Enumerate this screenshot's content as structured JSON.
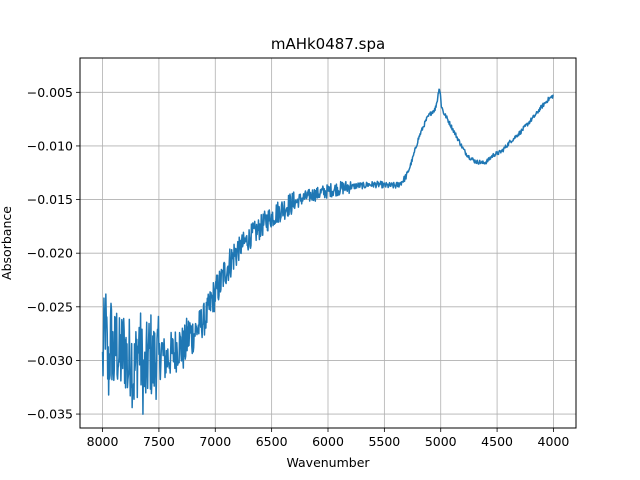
{
  "chart_data": {
    "type": "line",
    "title": "mAHk0487.spa",
    "xlabel": "Wavenumber",
    "ylabel": "Absorbance",
    "xlim": [
      8200,
      3800
    ],
    "x_reversed": true,
    "ylim": [
      -0.0363,
      -0.0018
    ],
    "grid": true,
    "x_ticks": [
      8000,
      7500,
      7000,
      6500,
      6000,
      5500,
      5000,
      4500,
      4000
    ],
    "x_tick_labels": [
      "8000",
      "7500",
      "7000",
      "6500",
      "6000",
      "5500",
      "5000",
      "4500",
      "4000"
    ],
    "y_ticks": [
      -0.035,
      -0.03,
      -0.025,
      -0.02,
      -0.015,
      -0.01,
      -0.005
    ],
    "y_tick_labels": [
      "−0.035",
      "−0.030",
      "−0.025",
      "−0.020",
      "−0.015",
      "−0.010",
      "−0.005"
    ],
    "series": [
      {
        "color": "#1f77b4",
        "points": [
          [
            8000,
            -0.0305
          ],
          [
            7975,
            -0.0262
          ],
          [
            7950,
            -0.0312
          ],
          [
            7925,
            -0.0278
          ],
          [
            7900,
            -0.03
          ],
          [
            7875,
            -0.0283
          ],
          [
            7850,
            -0.03
          ],
          [
            7825,
            -0.0292
          ],
          [
            7800,
            -0.0288
          ],
          [
            7775,
            -0.0308
          ],
          [
            7750,
            -0.029
          ],
          [
            7725,
            -0.0315
          ],
          [
            7700,
            -0.03
          ],
          [
            7675,
            -0.0283
          ],
          [
            7650,
            -0.0305
          ],
          [
            7625,
            -0.0318
          ],
          [
            7600,
            -0.03
          ],
          [
            7575,
            -0.0292
          ],
          [
            7550,
            -0.0305
          ],
          [
            7525,
            -0.0295
          ],
          [
            7500,
            -0.0302
          ],
          [
            7475,
            -0.029
          ],
          [
            7450,
            -0.03
          ],
          [
            7425,
            -0.0298
          ],
          [
            7400,
            -0.0295
          ],
          [
            7375,
            -0.0294
          ],
          [
            7350,
            -0.029
          ],
          [
            7325,
            -0.0285
          ],
          [
            7300,
            -0.0288
          ],
          [
            7275,
            -0.029
          ],
          [
            7250,
            -0.028
          ],
          [
            7225,
            -0.0275
          ],
          [
            7200,
            -0.0278
          ],
          [
            7175,
            -0.0272
          ],
          [
            7150,
            -0.027
          ],
          [
            7125,
            -0.0265
          ],
          [
            7100,
            -0.0262
          ],
          [
            7075,
            -0.0258
          ],
          [
            7050,
            -0.025
          ],
          [
            7025,
            -0.0242
          ],
          [
            7000,
            -0.0238
          ],
          [
            6975,
            -0.0232
          ],
          [
            6950,
            -0.0228
          ],
          [
            6925,
            -0.022
          ],
          [
            6900,
            -0.0214
          ],
          [
            6875,
            -0.021
          ],
          [
            6850,
            -0.0205
          ],
          [
            6825,
            -0.02
          ],
          [
            6800,
            -0.0198
          ],
          [
            6775,
            -0.0194
          ],
          [
            6750,
            -0.0191
          ],
          [
            6725,
            -0.0189
          ],
          [
            6700,
            -0.0186
          ],
          [
            6675,
            -0.0183
          ],
          [
            6650,
            -0.0181
          ],
          [
            6625,
            -0.0179
          ],
          [
            6600,
            -0.0176
          ],
          [
            6575,
            -0.0173
          ],
          [
            6550,
            -0.017
          ],
          [
            6525,
            -0.0168
          ],
          [
            6500,
            -0.0166
          ],
          [
            6475,
            -0.0164
          ],
          [
            6450,
            -0.0162
          ],
          [
            6425,
            -0.016
          ],
          [
            6400,
            -0.0159
          ],
          [
            6375,
            -0.0157
          ],
          [
            6350,
            -0.0155
          ],
          [
            6325,
            -0.0154
          ],
          [
            6300,
            -0.0153
          ],
          [
            6275,
            -0.0152
          ],
          [
            6250,
            -0.015
          ],
          [
            6225,
            -0.0149
          ],
          [
            6200,
            -0.0148
          ],
          [
            6175,
            -0.0147
          ],
          [
            6150,
            -0.0146
          ],
          [
            6125,
            -0.0145
          ],
          [
            6100,
            -0.0145
          ],
          [
            6075,
            -0.0144
          ],
          [
            6050,
            -0.0143
          ],
          [
            6025,
            -0.0143
          ],
          [
            6000,
            -0.0142
          ],
          [
            5975,
            -0.0141
          ],
          [
            5950,
            -0.0141
          ],
          [
            5925,
            -0.014
          ],
          [
            5900,
            -0.014
          ],
          [
            5875,
            -0.0139
          ],
          [
            5850,
            -0.0139
          ],
          [
            5825,
            -0.0138
          ],
          [
            5800,
            -0.0138
          ],
          [
            5775,
            -0.0138
          ],
          [
            5750,
            -0.0137
          ],
          [
            5725,
            -0.0137
          ],
          [
            5700,
            -0.0137
          ],
          [
            5675,
            -0.0137
          ],
          [
            5650,
            -0.0136
          ],
          [
            5625,
            -0.0136
          ],
          [
            5600,
            -0.0136
          ],
          [
            5575,
            -0.0136
          ],
          [
            5550,
            -0.0136
          ],
          [
            5525,
            -0.0136
          ],
          [
            5500,
            -0.0137
          ],
          [
            5475,
            -0.0137
          ],
          [
            5450,
            -0.0137
          ],
          [
            5425,
            -0.0137
          ],
          [
            5400,
            -0.0137
          ],
          [
            5375,
            -0.0136
          ],
          [
            5350,
            -0.0134
          ],
          [
            5325,
            -0.0131
          ],
          [
            5300,
            -0.0127
          ],
          [
            5275,
            -0.012
          ],
          [
            5250,
            -0.0112
          ],
          [
            5225,
            -0.0103
          ],
          [
            5200,
            -0.0094
          ],
          [
            5175,
            -0.0087
          ],
          [
            5150,
            -0.0081
          ],
          [
            5125,
            -0.0075
          ],
          [
            5100,
            -0.0071
          ],
          [
            5075,
            -0.0068
          ],
          [
            5050,
            -0.0066
          ],
          [
            5030,
            -0.0057
          ],
          [
            5015,
            -0.0046
          ],
          [
            5005,
            -0.005
          ],
          [
            4995,
            -0.0062
          ],
          [
            4975,
            -0.0069
          ],
          [
            4950,
            -0.0073
          ],
          [
            4925,
            -0.0078
          ],
          [
            4900,
            -0.0083
          ],
          [
            4875,
            -0.0088
          ],
          [
            4850,
            -0.0093
          ],
          [
            4825,
            -0.0098
          ],
          [
            4800,
            -0.0103
          ],
          [
            4775,
            -0.0107
          ],
          [
            4750,
            -0.011
          ],
          [
            4725,
            -0.0112
          ],
          [
            4700,
            -0.0114
          ],
          [
            4675,
            -0.0115
          ],
          [
            4650,
            -0.0115
          ],
          [
            4625,
            -0.0116
          ],
          [
            4600,
            -0.0115
          ],
          [
            4575,
            -0.0113
          ],
          [
            4550,
            -0.011
          ],
          [
            4525,
            -0.0108
          ],
          [
            4500,
            -0.0107
          ],
          [
            4475,
            -0.0106
          ],
          [
            4450,
            -0.0104
          ],
          [
            4425,
            -0.0101
          ],
          [
            4400,
            -0.0098
          ],
          [
            4375,
            -0.0095
          ],
          [
            4350,
            -0.0093
          ],
          [
            4325,
            -0.009
          ],
          [
            4300,
            -0.0088
          ],
          [
            4275,
            -0.0085
          ],
          [
            4250,
            -0.0082
          ],
          [
            4225,
            -0.0079
          ],
          [
            4200,
            -0.0076
          ],
          [
            4175,
            -0.0073
          ],
          [
            4150,
            -0.007
          ],
          [
            4125,
            -0.0066
          ],
          [
            4100,
            -0.0063
          ],
          [
            4075,
            -0.006
          ],
          [
            4050,
            -0.0057
          ],
          [
            4025,
            -0.0055
          ],
          [
            4000,
            -0.0053
          ]
        ],
        "noise": [
          {
            "from": 8000,
            "to": 7500,
            "amplitude": 0.0042
          },
          {
            "from": 7500,
            "to": 7200,
            "amplitude": 0.0022
          },
          {
            "from": 7200,
            "to": 6800,
            "amplitude": 0.0016
          },
          {
            "from": 6800,
            "to": 6300,
            "amplitude": 0.0011
          },
          {
            "from": 6300,
            "to": 5800,
            "amplitude": 0.00065
          },
          {
            "from": 5800,
            "to": 5300,
            "amplitude": 0.0003
          },
          {
            "from": 5300,
            "to": 4000,
            "amplitude": 0.0002
          }
        ]
      }
    ]
  }
}
